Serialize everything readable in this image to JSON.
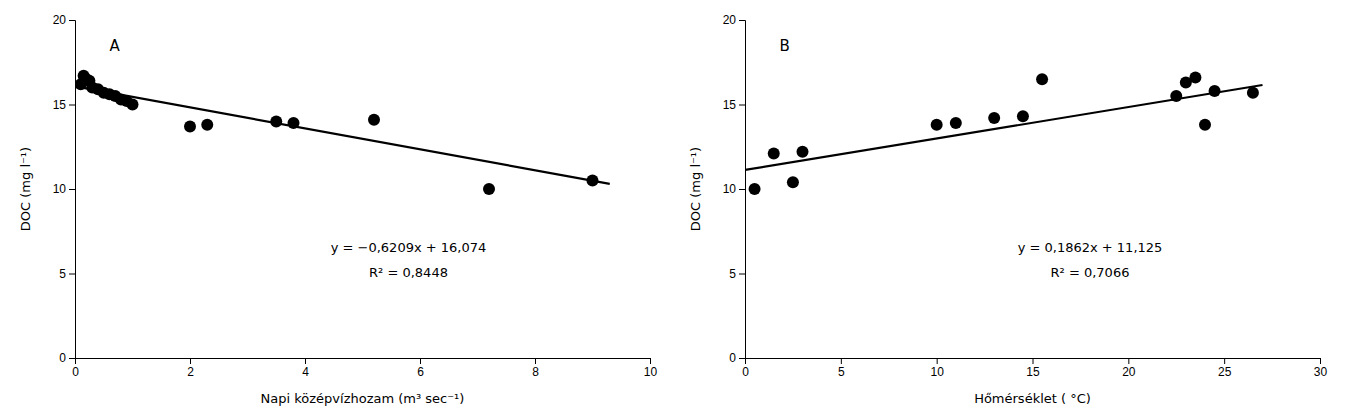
{
  "chart_data": [
    {
      "type": "scatter",
      "title": "A",
      "xlabel": "Napi középvízhozam (m³ sec⁻¹)",
      "ylabel": "DOC (mg l⁻¹)",
      "xlim": [
        0,
        10
      ],
      "ylim": [
        0,
        20
      ],
      "xticks": [
        0,
        2,
        4,
        6,
        8,
        10
      ],
      "yticks": [
        0,
        5,
        10,
        15,
        20
      ],
      "grid": false,
      "series": [
        {
          "type": "scatter",
          "color": "black",
          "marker": "circle",
          "x": [
            0.1,
            0.15,
            0.2,
            0.25,
            0.3,
            0.4,
            0.5,
            0.6,
            0.7,
            0.8,
            0.9,
            1.0,
            2.0,
            2.3,
            3.5,
            3.8,
            5.2,
            7.2,
            9.0
          ],
          "values": [
            16.2,
            16.7,
            16.5,
            16.4,
            16.0,
            15.9,
            15.7,
            15.6,
            15.5,
            15.3,
            15.2,
            15.0,
            13.7,
            13.8,
            14.0,
            13.9,
            14.1,
            10.0,
            10.5
          ]
        },
        {
          "type": "line",
          "color": "black",
          "line_style": "solid",
          "x": [
            0.0,
            9.3
          ],
          "values": [
            16.074,
            10.29963
          ]
        }
      ],
      "annotations": [
        {
          "text": "y = −0,6209x + 16,074",
          "x": 5.8,
          "y": 6.5
        },
        {
          "text": "R² = 0,8448",
          "x": 5.8,
          "y": 5.0
        }
      ]
    },
    {
      "type": "scatter",
      "title": "B",
      "xlabel": "Hőmérséklet ( °C)",
      "ylabel": "DOC (mg l⁻¹)",
      "xlim": [
        0,
        30
      ],
      "ylim": [
        0,
        20
      ],
      "xticks": [
        0,
        5,
        10,
        15,
        20,
        25,
        30
      ],
      "yticks": [
        0,
        5,
        10,
        15,
        20
      ],
      "grid": false,
      "series": [
        {
          "type": "scatter",
          "color": "black",
          "marker": "circle",
          "x": [
            0.5,
            1.5,
            2.5,
            3.0,
            10.0,
            11.0,
            13.0,
            14.5,
            15.5,
            22.5,
            23.0,
            23.5,
            24.0,
            24.5,
            26.5
          ],
          "values": [
            10.0,
            12.1,
            10.4,
            12.2,
            13.8,
            13.9,
            14.2,
            14.3,
            16.5,
            15.5,
            16.3,
            16.6,
            13.8,
            15.8,
            15.7
          ]
        },
        {
          "type": "line",
          "color": "black",
          "line_style": "solid",
          "x": [
            0.0,
            27.0
          ],
          "values": [
            11.125,
            16.1524
          ]
        }
      ],
      "annotations": [
        {
          "text": "y = 0,1862x + 11,125",
          "x": 18.0,
          "y": 6.5
        },
        {
          "text": "R² = 0,7066",
          "x": 18.0,
          "y": 5.0
        }
      ]
    }
  ]
}
